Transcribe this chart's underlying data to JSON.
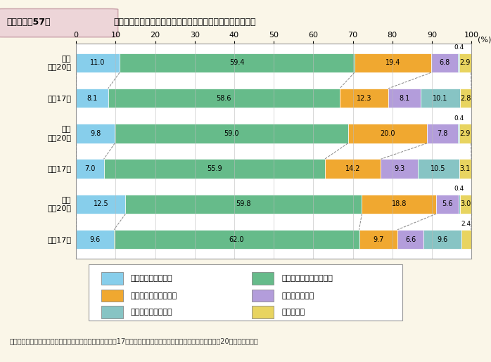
{
  "title_label": "第１－特－57図",
  "title_text": "地域が元気になるための活動に参加したいと思うか（性別）",
  "background_color": "#faf6e8",
  "plot_bg_color": "#ffffff",
  "header_bg": "#edd5d8",
  "rows": [
    {
      "label": "総数\n平成20年",
      "values": [
        11.0,
        59.4,
        19.4,
        6.8,
        0.4,
        2.9
      ]
    },
    {
      "label": "平成17年",
      "values": [
        8.1,
        58.6,
        12.3,
        8.1,
        10.1,
        2.8
      ]
    },
    {
      "label": "女性\n平成20年",
      "values": [
        9.8,
        59.0,
        20.0,
        7.8,
        0.4,
        2.9
      ]
    },
    {
      "label": "平成17年",
      "values": [
        7.0,
        55.9,
        14.2,
        9.3,
        10.5,
        3.1
      ]
    },
    {
      "label": "男性\n平成20年",
      "values": [
        12.5,
        59.8,
        18.8,
        5.6,
        0.4,
        3.0
      ]
    },
    {
      "label": "平成17年",
      "values": [
        9.6,
        62.0,
        9.7,
        6.6,
        9.6,
        2.4
      ]
    }
  ],
  "colors": [
    "#87ceeb",
    "#66bb8a",
    "#f0a830",
    "#b39ddb",
    "#87c4c4",
    "#e8d460"
  ],
  "legend_labels": [
    "積極的に参加したい",
    "機会があれば参加したい",
    "あまり参加したくない",
    "参加したくない",
    "どちらともいえない",
    "わからない"
  ],
  "xlim": [
    0,
    100
  ],
  "xticks": [
    0,
    10,
    20,
    30,
    40,
    50,
    60,
    70,
    80,
    90,
    100
  ],
  "footnote": "（備考）内閣府「地域再生に関する特別世論調査」（平成17年）及び「地方再生に関する特別世論調査」（平成20年）より作成。"
}
